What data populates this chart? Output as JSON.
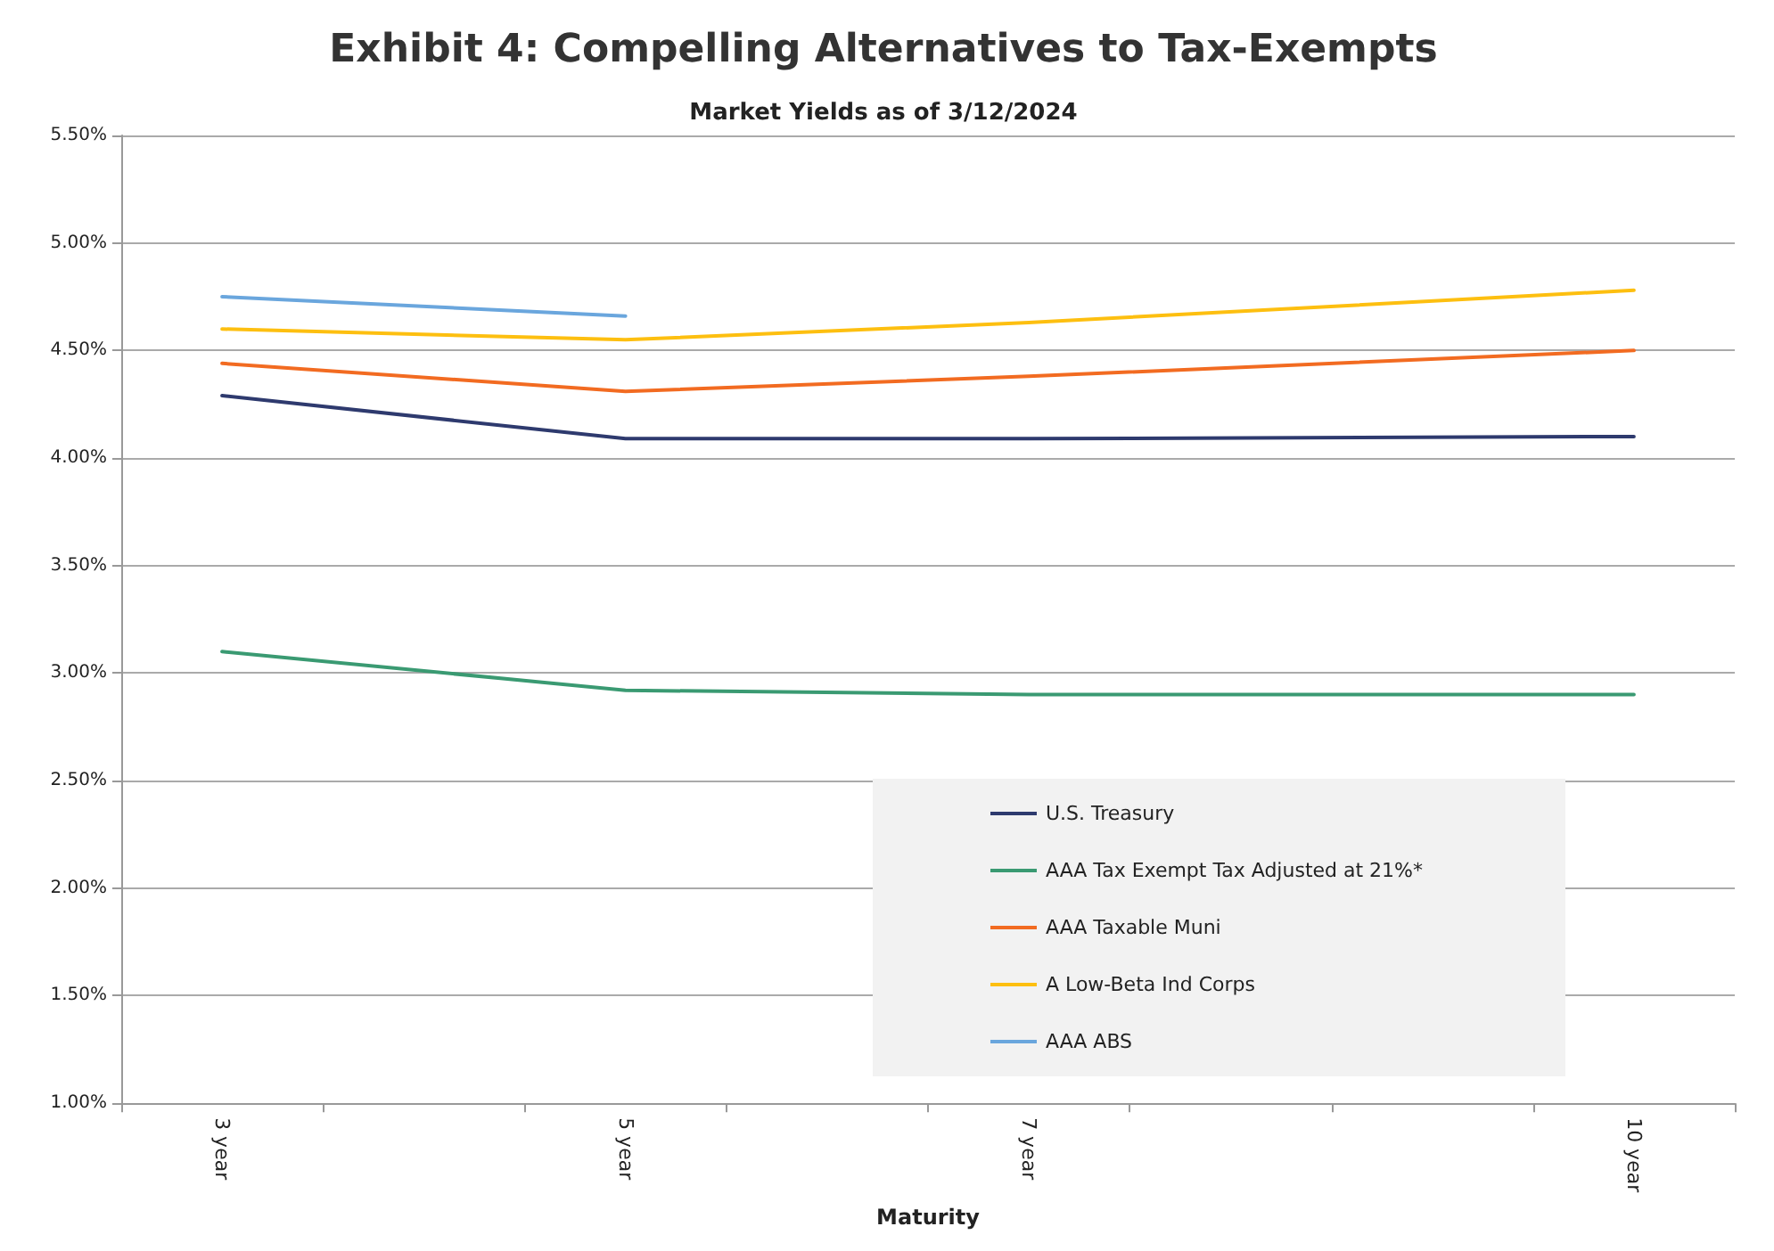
{
  "chart_data": {
    "type": "line",
    "title": "Exhibit 4: Compelling Alternatives to Tax-Exempts",
    "subtitle": "Market Yields as of 3/12/2024",
    "xlabel": "Maturity",
    "categories": [
      "3 year",
      null,
      "5 year",
      null,
      "7 year",
      null,
      null,
      "10 year"
    ],
    "series": [
      {
        "name": "U.S. Treasury",
        "color": "#2e3a6e",
        "values": [
          4.29,
          null,
          4.09,
          null,
          4.09,
          null,
          null,
          4.1
        ]
      },
      {
        "name": "AAA Tax Exempt Tax Adjusted at 21%*",
        "color": "#3a9a72",
        "values": [
          3.1,
          null,
          2.92,
          null,
          2.9,
          null,
          null,
          2.9
        ]
      },
      {
        "name": "AAA Taxable Muni",
        "color": "#f26b21",
        "values": [
          4.44,
          null,
          4.31,
          null,
          4.38,
          null,
          null,
          4.5
        ]
      },
      {
        "name": "A Low-Beta Ind Corps",
        "color": "#fdbf10",
        "values": [
          4.6,
          null,
          4.55,
          null,
          4.63,
          null,
          null,
          4.78
        ]
      },
      {
        "name": "AAA ABS",
        "color": "#6aa6dd",
        "values": [
          4.75,
          null,
          4.66,
          null,
          null,
          null,
          null,
          null
        ]
      }
    ],
    "ylim": [
      1.0,
      5.5
    ],
    "yticks": [
      {
        "value": 1.0,
        "label": "1.00%"
      },
      {
        "value": 1.5,
        "label": "1.50%"
      },
      {
        "value": 2.0,
        "label": "2.00%"
      },
      {
        "value": 2.5,
        "label": "2.50%"
      },
      {
        "value": 3.0,
        "label": "3.00%"
      },
      {
        "value": 3.5,
        "label": "3.50%"
      },
      {
        "value": 4.0,
        "label": "4.00%"
      },
      {
        "value": 4.5,
        "label": "4.50%"
      },
      {
        "value": 5.0,
        "label": "5.00%"
      },
      {
        "value": 5.5,
        "label": "5.50%"
      }
    ],
    "grid": "y",
    "legend": "bottom right",
    "marker": "none",
    "line_style": "solid"
  }
}
